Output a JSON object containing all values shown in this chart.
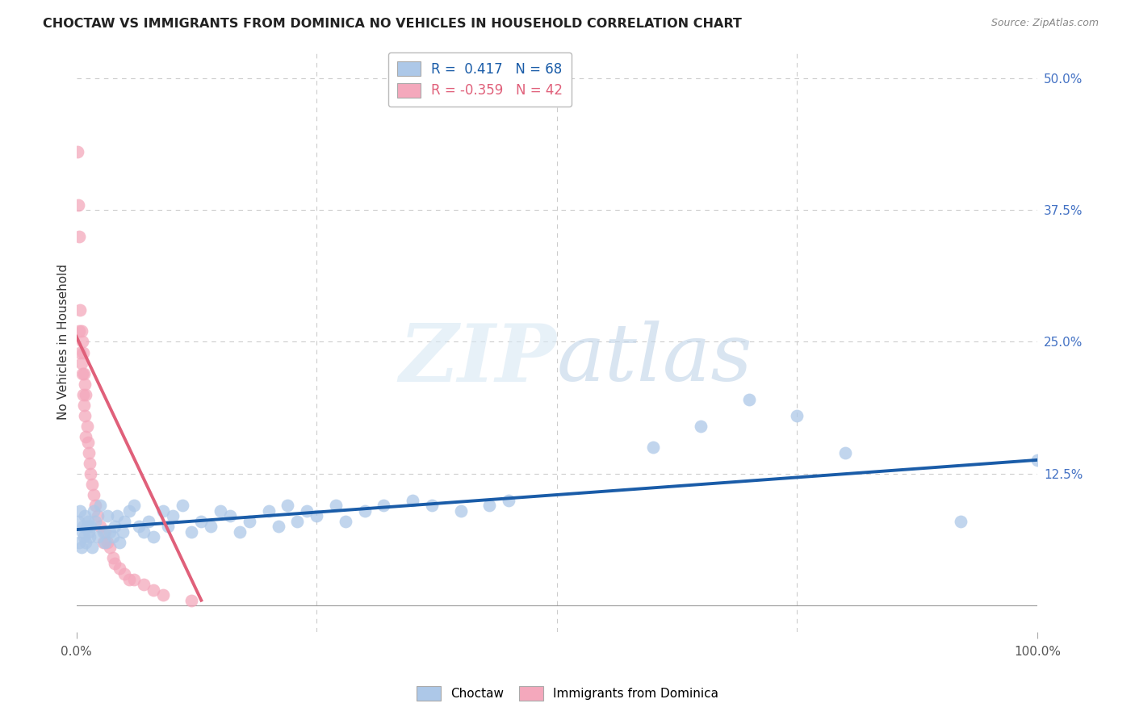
{
  "title": "CHOCTAW VS IMMIGRANTS FROM DOMINICA NO VEHICLES IN HOUSEHOLD CORRELATION CHART",
  "source": "Source: ZipAtlas.com",
  "ylabel": "No Vehicles in Household",
  "blue_color": "#adc8e8",
  "pink_color": "#f4a8bc",
  "blue_line_color": "#1a5ca8",
  "pink_line_color": "#e0607a",
  "r_blue": 0.417,
  "n_blue": 68,
  "r_pink": -0.359,
  "n_pink": 42,
  "legend_label_blue": "Choctaw",
  "legend_label_pink": "Immigrants from Dominica",
  "blue_scatter_x": [
    0.002,
    0.003,
    0.004,
    0.005,
    0.006,
    0.007,
    0.008,
    0.009,
    0.01,
    0.011,
    0.012,
    0.013,
    0.014,
    0.015,
    0.016,
    0.018,
    0.02,
    0.022,
    0.025,
    0.028,
    0.03,
    0.032,
    0.035,
    0.038,
    0.04,
    0.042,
    0.045,
    0.048,
    0.05,
    0.055,
    0.06,
    0.065,
    0.07,
    0.075,
    0.08,
    0.09,
    0.095,
    0.1,
    0.11,
    0.12,
    0.13,
    0.14,
    0.15,
    0.16,
    0.17,
    0.18,
    0.2,
    0.21,
    0.22,
    0.23,
    0.24,
    0.25,
    0.27,
    0.28,
    0.3,
    0.32,
    0.35,
    0.37,
    0.4,
    0.43,
    0.45,
    0.6,
    0.65,
    0.7,
    0.75,
    0.8,
    0.92,
    1.0
  ],
  "blue_scatter_y": [
    0.08,
    0.06,
    0.09,
    0.055,
    0.07,
    0.075,
    0.065,
    0.085,
    0.06,
    0.075,
    0.08,
    0.07,
    0.065,
    0.075,
    0.055,
    0.09,
    0.08,
    0.065,
    0.095,
    0.07,
    0.06,
    0.085,
    0.07,
    0.065,
    0.075,
    0.085,
    0.06,
    0.07,
    0.08,
    0.09,
    0.095,
    0.075,
    0.07,
    0.08,
    0.065,
    0.09,
    0.075,
    0.085,
    0.095,
    0.07,
    0.08,
    0.075,
    0.09,
    0.085,
    0.07,
    0.08,
    0.09,
    0.075,
    0.095,
    0.08,
    0.09,
    0.085,
    0.095,
    0.08,
    0.09,
    0.095,
    0.1,
    0.095,
    0.09,
    0.095,
    0.1,
    0.15,
    0.17,
    0.195,
    0.18,
    0.145,
    0.08,
    0.138
  ],
  "pink_scatter_x": [
    0.001,
    0.002,
    0.003,
    0.003,
    0.004,
    0.004,
    0.005,
    0.005,
    0.006,
    0.006,
    0.007,
    0.007,
    0.008,
    0.008,
    0.009,
    0.009,
    0.01,
    0.01,
    0.011,
    0.012,
    0.013,
    0.014,
    0.015,
    0.016,
    0.018,
    0.02,
    0.022,
    0.025,
    0.028,
    0.03,
    0.032,
    0.035,
    0.038,
    0.04,
    0.045,
    0.05,
    0.055,
    0.06,
    0.07,
    0.08,
    0.09,
    0.12
  ],
  "pink_scatter_y": [
    0.43,
    0.38,
    0.26,
    0.35,
    0.24,
    0.28,
    0.23,
    0.26,
    0.22,
    0.25,
    0.2,
    0.24,
    0.19,
    0.22,
    0.18,
    0.21,
    0.16,
    0.2,
    0.17,
    0.155,
    0.145,
    0.135,
    0.125,
    0.115,
    0.105,
    0.095,
    0.085,
    0.075,
    0.06,
    0.07,
    0.06,
    0.055,
    0.045,
    0.04,
    0.035,
    0.03,
    0.025,
    0.025,
    0.02,
    0.015,
    0.01,
    0.005
  ],
  "blue_line_x0": 0.0,
  "blue_line_x1": 1.0,
  "blue_line_y0": 0.072,
  "blue_line_y1": 0.138,
  "pink_line_x0": 0.0,
  "pink_line_x1": 0.13,
  "pink_line_y0": 0.255,
  "pink_line_y1": 0.005,
  "watermark_zip": "ZIP",
  "watermark_atlas": "atlas",
  "background_color": "#ffffff",
  "grid_color": "#cccccc",
  "title_color": "#222222",
  "right_tick_color": "#4472c4",
  "xlim": [
    0.0,
    1.0
  ],
  "ylim": [
    -0.025,
    0.525
  ]
}
